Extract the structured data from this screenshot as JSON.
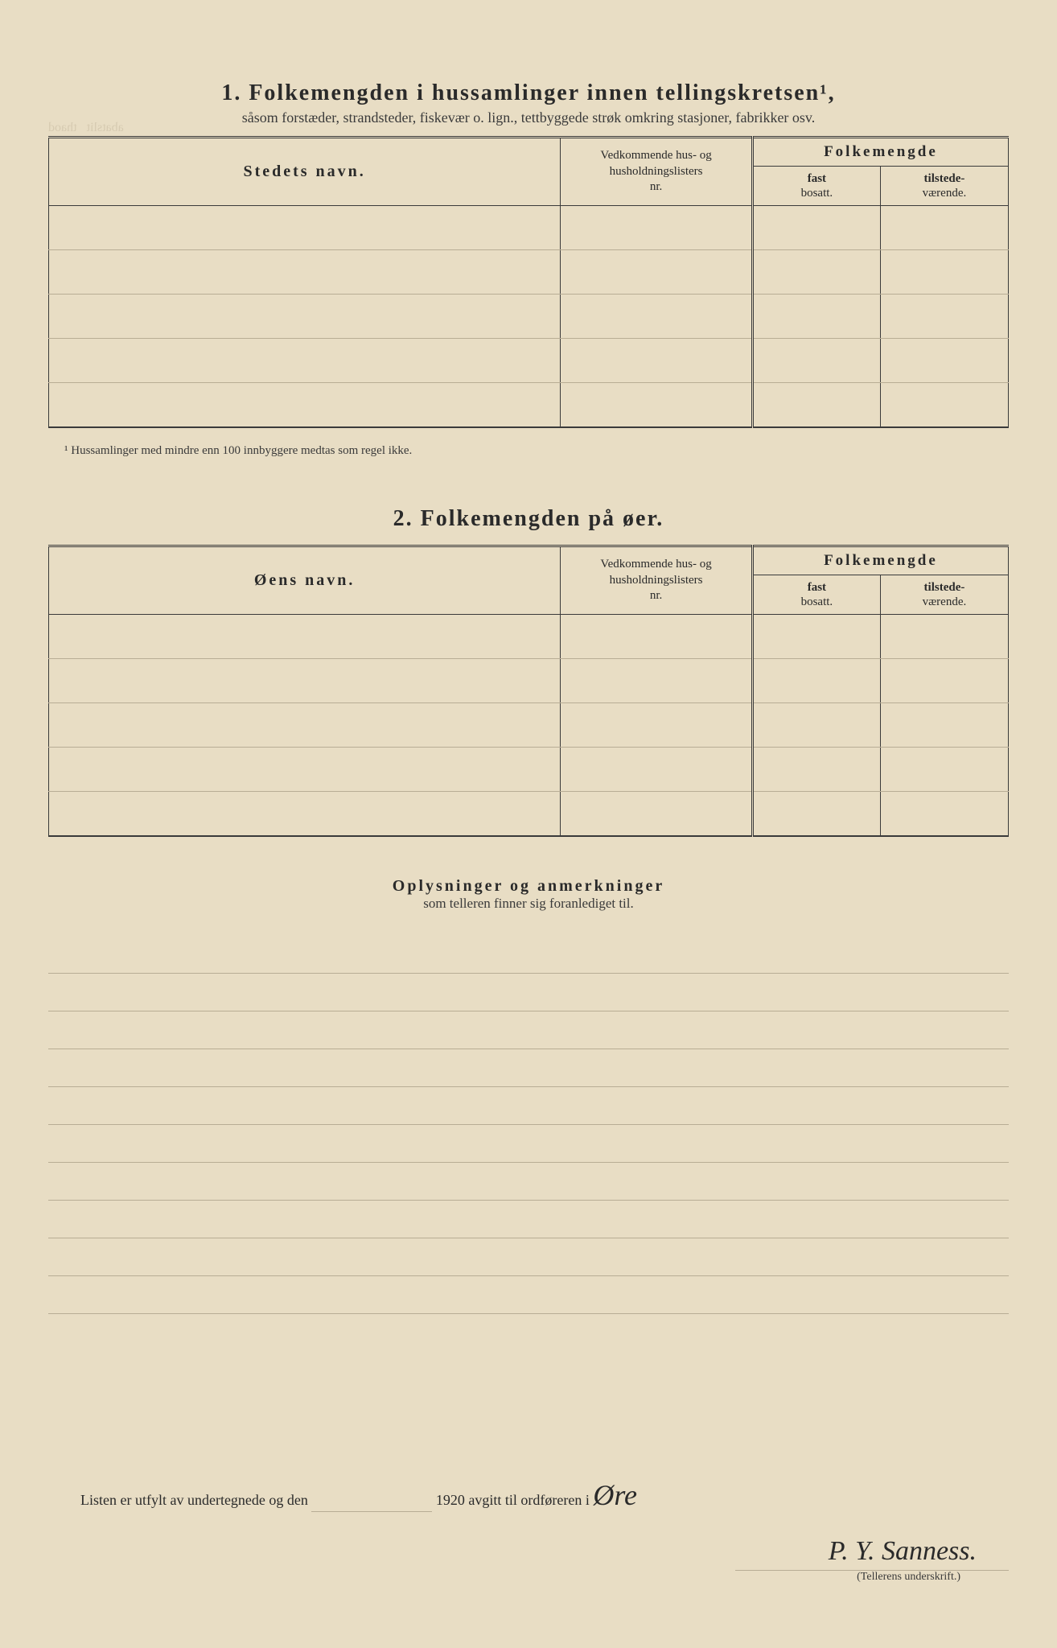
{
  "section1": {
    "number": "1.",
    "title": "Folkemengden i hussamlinger innen tellingskretsen¹,",
    "subtitle": "såsom forstæder, strandsteder, fiskevær o. lign., tettbyggede strøk omkring stasjoner, fabrikker osv.",
    "col1": "Stedets navn.",
    "col2_line1": "Vedkommende hus- og",
    "col2_line2": "husholdningslisters",
    "col2_line3": "nr.",
    "col3_header": "Folkemengde",
    "col3a_line1": "fast",
    "col3a_line2": "bosatt.",
    "col3b_line1": "tilstede-",
    "col3b_line2": "værende.",
    "footnote": "¹ Hussamlinger med mindre enn 100 innbyggere medtas som regel ikke."
  },
  "section2": {
    "number": "2.",
    "title": "Folkemengden på øer.",
    "col1": "Øens navn.",
    "col2_line1": "Vedkommende hus- og",
    "col2_line2": "husholdningslisters",
    "col2_line3": "nr.",
    "col3_header": "Folkemengde",
    "col3a_line1": "fast",
    "col3a_line2": "bosatt.",
    "col3b_line1": "tilstede-",
    "col3b_line2": "værende."
  },
  "remarks": {
    "title": "Oplysninger og anmerkninger",
    "subtitle": "som telleren finner sig foranlediget til."
  },
  "signature": {
    "prefix": "Listen er utfylt av undertegnede og den",
    "year": "1920",
    "mid": "avgitt til ordføreren i",
    "place_handwritten": "Øre",
    "name_handwritten": "P. Y. Sanness.",
    "caption": "(Tellerens underskrift.)"
  },
  "layout": {
    "table1_rows": 5,
    "table2_rows": 5,
    "remarks_rows": 10
  }
}
